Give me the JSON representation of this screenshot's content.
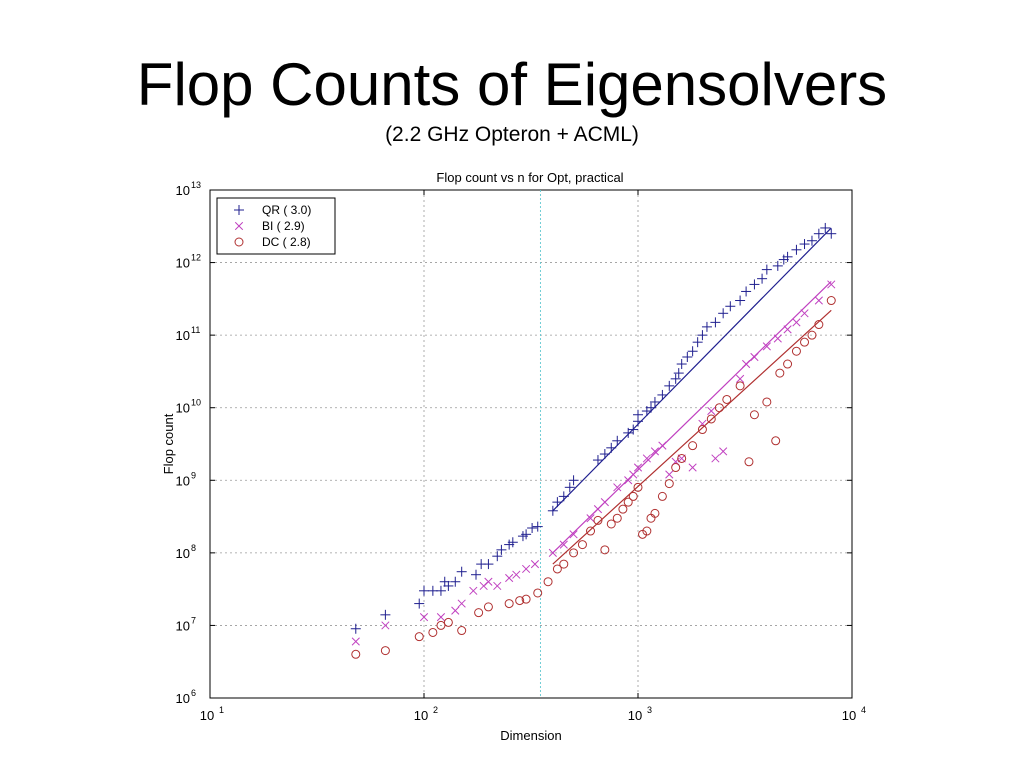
{
  "slide": {
    "title": "Flop Counts of Eigensolvers",
    "subtitle": "(2.2 GHz Opteron + ACML)"
  },
  "chart_data": {
    "type": "scatter",
    "title": "Flop count vs n for Opt, practical",
    "xlabel": "Dimension",
    "ylabel": "Flop count",
    "xscale": "log",
    "yscale": "log",
    "xlim": [
      10,
      10000
    ],
    "ylim": [
      1000000,
      10000000000000
    ],
    "xticks": [
      {
        "base": "10",
        "exp": "1"
      },
      {
        "base": "10",
        "exp": "2"
      },
      {
        "base": "10",
        "exp": "3"
      },
      {
        "base": "10",
        "exp": "4"
      }
    ],
    "yticks": [
      {
        "base": "10",
        "exp": "6"
      },
      {
        "base": "10",
        "exp": "7"
      },
      {
        "base": "10",
        "exp": "8"
      },
      {
        "base": "10",
        "exp": "9"
      },
      {
        "base": "10",
        "exp": "10"
      },
      {
        "base": "10",
        "exp": "11"
      },
      {
        "base": "10",
        "exp": "12"
      },
      {
        "base": "10",
        "exp": "13"
      }
    ],
    "grid": true,
    "legend_position": "top-left",
    "vline_x": 350,
    "series": [
      {
        "name": "QR  ( 3.0)",
        "marker": "plus",
        "color": "#1f1f8f",
        "fit": {
          "x": [
            400,
            8000
          ],
          "y": [
            380000000,
            3000000000000
          ]
        },
        "points": [
          [
            48,
            9000000.0
          ],
          [
            66,
            14000000.0
          ],
          [
            95,
            20000000.0
          ],
          [
            100,
            30000000.0
          ],
          [
            110,
            30000000.0
          ],
          [
            120,
            30000000.0
          ],
          [
            125,
            40000000.0
          ],
          [
            130,
            35000000.0
          ],
          [
            140,
            40000000.0
          ],
          [
            150,
            55000000.0
          ],
          [
            175,
            50000000.0
          ],
          [
            185,
            70000000.0
          ],
          [
            200,
            70000000.0
          ],
          [
            220,
            90000000.0
          ],
          [
            230,
            110000000.0
          ],
          [
            250,
            130000000.0
          ],
          [
            260,
            140000000.0
          ],
          [
            290,
            170000000.0
          ],
          [
            300,
            180000000.0
          ],
          [
            320,
            220000000.0
          ],
          [
            340,
            230000000.0
          ],
          [
            400,
            380000000.0
          ],
          [
            420,
            500000000.0
          ],
          [
            450,
            600000000.0
          ],
          [
            480,
            800000000.0
          ],
          [
            500,
            1000000000.0
          ],
          [
            650,
            1900000000.0
          ],
          [
            700,
            2300000000.0
          ],
          [
            750,
            2800000000.0
          ],
          [
            800,
            3500000000.0
          ],
          [
            900,
            4500000000.0
          ],
          [
            950,
            5000000000.0
          ],
          [
            1000,
            6500000000.0
          ],
          [
            1000,
            8000000000.0
          ],
          [
            1100,
            9000000000.0
          ],
          [
            1150,
            10000000000.0
          ],
          [
            1200,
            12000000000.0
          ],
          [
            1300,
            15000000000.0
          ],
          [
            1400,
            20000000000.0
          ],
          [
            1500,
            25000000000.0
          ],
          [
            1550,
            30000000000.0
          ],
          [
            1600,
            40000000000.0
          ],
          [
            1700,
            50000000000.0
          ],
          [
            1800,
            60000000000.0
          ],
          [
            1900,
            80000000000.0
          ],
          [
            2000,
            100000000000.0
          ],
          [
            2100,
            130000000000.0
          ],
          [
            2300,
            150000000000.0
          ],
          [
            2500,
            200000000000.0
          ],
          [
            2700,
            250000000000.0
          ],
          [
            3000,
            300000000000.0
          ],
          [
            3200,
            400000000000.0
          ],
          [
            3500,
            500000000000.0
          ],
          [
            3800,
            600000000000.0
          ],
          [
            4000,
            800000000000.0
          ],
          [
            4500,
            900000000000.0
          ],
          [
            4800,
            1100000000000.0
          ],
          [
            5000,
            1200000000000.0
          ],
          [
            5500,
            1500000000000.0
          ],
          [
            6000,
            1800000000000.0
          ],
          [
            6500,
            2000000000000.0
          ],
          [
            7000,
            2500000000000.0
          ],
          [
            7500,
            3000000000000.0
          ],
          [
            8000,
            2500000000000.0
          ]
        ]
      },
      {
        "name": "BI  ( 2.9)",
        "marker": "cross",
        "color": "#c040c0",
        "fit": {
          "x": [
            400,
            8000
          ],
          "y": [
            100000000,
            550000000000
          ]
        },
        "points": [
          [
            48,
            6000000.0
          ],
          [
            66,
            10000000.0
          ],
          [
            100,
            13000000.0
          ],
          [
            120,
            13000000.0
          ],
          [
            140,
            16000000.0
          ],
          [
            150,
            20000000.0
          ],
          [
            170,
            30000000.0
          ],
          [
            190,
            35000000.0
          ],
          [
            200,
            40000000.0
          ],
          [
            220,
            35000000.0
          ],
          [
            250,
            45000000.0
          ],
          [
            270,
            50000000.0
          ],
          [
            300,
            60000000.0
          ],
          [
            330,
            70000000.0
          ],
          [
            400,
            100000000.0
          ],
          [
            450,
            130000000.0
          ],
          [
            500,
            180000000.0
          ],
          [
            600,
            300000000.0
          ],
          [
            650,
            400000000.0
          ],
          [
            700,
            500000000.0
          ],
          [
            800,
            800000000.0
          ],
          [
            900,
            1000000000.0
          ],
          [
            950,
            1200000000.0
          ],
          [
            1000,
            1500000000.0
          ],
          [
            1100,
            2000000000.0
          ],
          [
            1200,
            2500000000.0
          ],
          [
            1300,
            3000000000.0
          ],
          [
            1400,
            1200000000.0
          ],
          [
            1500,
            1800000000.0
          ],
          [
            1600,
            2000000000.0
          ],
          [
            1800,
            1500000000.0
          ],
          [
            2000,
            6000000000.0
          ],
          [
            2200,
            9000000000.0
          ],
          [
            2300,
            2000000000.0
          ],
          [
            2500,
            2500000000.0
          ],
          [
            3000,
            25000000000.0
          ],
          [
            3200,
            40000000000.0
          ],
          [
            3500,
            50000000000.0
          ],
          [
            4000,
            70000000000.0
          ],
          [
            4500,
            90000000000.0
          ],
          [
            5000,
            120000000000.0
          ],
          [
            5500,
            150000000000.0
          ],
          [
            6000,
            200000000000.0
          ],
          [
            7000,
            300000000000.0
          ],
          [
            8000,
            500000000000.0
          ]
        ]
      },
      {
        "name": "DC  ( 2.8)",
        "marker": "circle",
        "color": "#b03030",
        "fit": {
          "x": [
            400,
            8000
          ],
          "y": [
            70000000,
            220000000000
          ]
        },
        "points": [
          [
            48,
            4000000.0
          ],
          [
            66,
            4500000.0
          ],
          [
            95,
            7000000.0
          ],
          [
            110,
            8000000.0
          ],
          [
            120,
            10000000.0
          ],
          [
            130,
            11000000.0
          ],
          [
            150,
            8500000.0
          ],
          [
            180,
            15000000.0
          ],
          [
            200,
            18000000.0
          ],
          [
            250,
            20000000.0
          ],
          [
            280,
            22000000.0
          ],
          [
            300,
            23000000.0
          ],
          [
            340,
            28000000.0
          ],
          [
            380,
            40000000.0
          ],
          [
            420,
            60000000.0
          ],
          [
            450,
            70000000.0
          ],
          [
            500,
            100000000.0
          ],
          [
            550,
            130000000.0
          ],
          [
            600,
            200000000.0
          ],
          [
            650,
            280000000.0
          ],
          [
            700,
            110000000.0
          ],
          [
            750,
            250000000.0
          ],
          [
            800,
            300000000.0
          ],
          [
            850,
            400000000.0
          ],
          [
            900,
            500000000.0
          ],
          [
            950,
            600000000.0
          ],
          [
            1000,
            800000000.0
          ],
          [
            1050,
            180000000.0
          ],
          [
            1100,
            200000000.0
          ],
          [
            1150,
            300000000.0
          ],
          [
            1200,
            350000000.0
          ],
          [
            1300,
            600000000.0
          ],
          [
            1400,
            900000000.0
          ],
          [
            1500,
            1500000000.0
          ],
          [
            1600,
            2000000000.0
          ],
          [
            1800,
            3000000000.0
          ],
          [
            2000,
            5000000000.0
          ],
          [
            2200,
            7000000000.0
          ],
          [
            2400,
            10000000000.0
          ],
          [
            2600,
            13000000000.0
          ],
          [
            3000,
            20000000000.0
          ],
          [
            3300,
            1800000000.0
          ],
          [
            3500,
            8000000000.0
          ],
          [
            4000,
            12000000000.0
          ],
          [
            4400,
            3500000000.0
          ],
          [
            4600,
            30000000000.0
          ],
          [
            5000,
            40000000000.0
          ],
          [
            5500,
            60000000000.0
          ],
          [
            6000,
            80000000000.0
          ],
          [
            6500,
            100000000000.0
          ],
          [
            7000,
            140000000000.0
          ],
          [
            8000,
            300000000000.0
          ]
        ]
      }
    ]
  }
}
